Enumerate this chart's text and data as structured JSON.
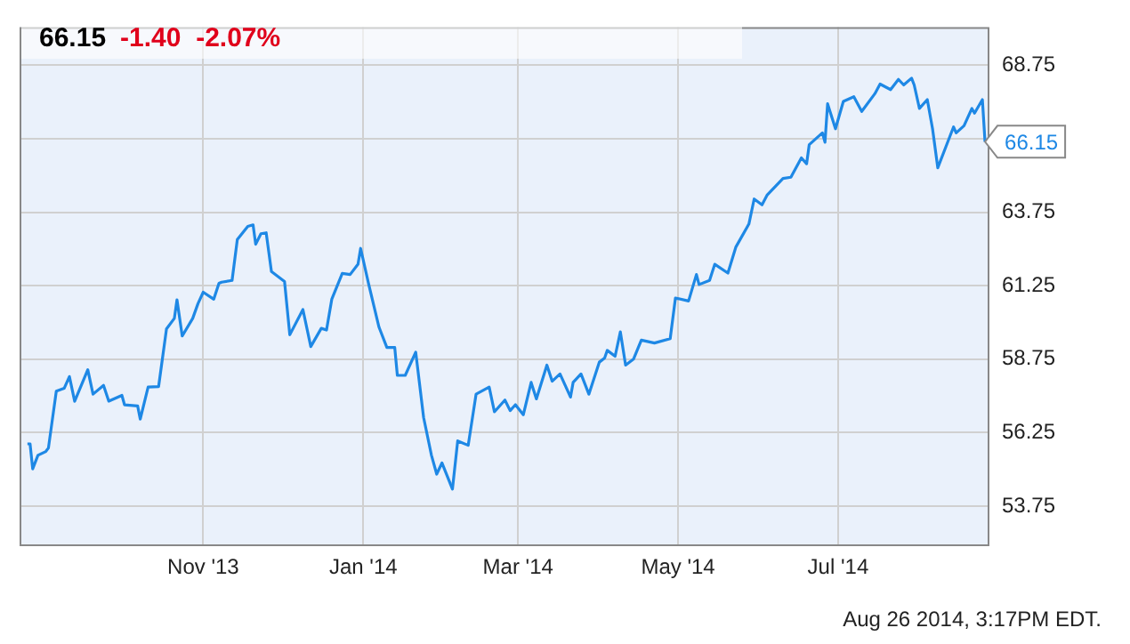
{
  "chart_data": {
    "type": "line",
    "title": "66.15",
    "subtitle": "-1.40  -2.07%",
    "x": [
      "2013-08-26",
      "2013-08-27",
      "2013-08-28",
      "2013-08-30",
      "2013-09-02",
      "2013-09-03",
      "2013-09-06",
      "2013-09-09",
      "2013-09-11",
      "2013-09-13",
      "2013-09-18",
      "2013-09-20",
      "2013-09-24",
      "2013-09-26",
      "2013-10-01",
      "2013-10-02",
      "2013-10-07",
      "2013-10-08",
      "2013-10-11",
      "2013-10-15",
      "2013-10-18",
      "2013-10-21",
      "2013-10-22",
      "2013-10-24",
      "2013-10-28",
      "2013-10-30",
      "2013-11-01",
      "2013-11-05",
      "2013-11-07",
      "2013-11-08",
      "2013-11-12",
      "2013-11-14",
      "2013-11-18",
      "2013-11-20",
      "2013-11-21",
      "2013-11-23",
      "2013-11-25",
      "2013-11-27",
      "2013-12-02",
      "2013-12-04",
      "2013-12-09",
      "2013-12-12",
      "2013-12-16",
      "2013-12-18",
      "2013-12-20",
      "2013-12-24",
      "2013-12-27",
      "2013-12-30",
      "2013-12-31",
      "2014-01-03",
      "2014-01-07",
      "2014-01-10",
      "2014-01-13",
      "2014-01-14",
      "2014-01-17",
      "2014-01-21",
      "2014-01-24",
      "2014-01-27",
      "2014-01-29",
      "2014-01-31",
      "2014-02-04",
      "2014-02-06",
      "2014-02-10",
      "2014-02-13",
      "2014-02-18",
      "2014-02-20",
      "2014-02-24",
      "2014-02-26",
      "2014-02-28",
      "2014-03-03",
      "2014-03-06",
      "2014-03-08",
      "2014-03-12",
      "2014-03-14",
      "2014-03-17",
      "2014-03-21",
      "2014-03-22",
      "2014-03-25",
      "2014-03-28",
      "2014-04-01",
      "2014-04-03",
      "2014-04-04",
      "2014-04-07",
      "2014-04-09",
      "2014-04-11",
      "2014-04-14",
      "2014-04-17",
      "2014-04-22",
      "2014-04-28",
      "2014-04-30",
      "2014-05-05",
      "2014-05-08",
      "2014-05-09",
      "2014-05-13",
      "2014-05-15",
      "2014-05-20",
      "2014-05-23",
      "2014-05-28",
      "2014-05-30",
      "2014-06-02",
      "2014-06-04",
      "2014-06-10",
      "2014-06-13",
      "2014-06-17",
      "2014-06-19",
      "2014-06-20",
      "2014-06-25",
      "2014-06-26",
      "2014-06-27",
      "2014-06-30",
      "2014-07-03",
      "2014-07-07",
      "2014-07-10",
      "2014-07-15",
      "2014-07-17",
      "2014-07-21",
      "2014-07-24",
      "2014-07-26",
      "2014-07-29",
      "2014-07-30",
      "2014-08-01",
      "2014-08-04",
      "2014-08-06",
      "2014-08-08",
      "2014-08-12",
      "2014-08-14",
      "2014-08-15",
      "2014-08-18",
      "2014-08-21",
      "2014-08-22",
      "2014-08-25",
      "2014-08-26"
    ],
    "series": [
      {
        "color": "#1e88e5",
        "values": [
          55.87,
          55.87,
          55.02,
          55.48,
          55.61,
          55.73,
          57.66,
          57.76,
          58.16,
          57.32,
          58.39,
          57.56,
          57.86,
          57.32,
          57.52,
          57.2,
          57.16,
          56.71,
          57.8,
          57.82,
          59.78,
          60.14,
          60.77,
          59.54,
          60.14,
          60.64,
          61.03,
          60.79,
          61.33,
          61.37,
          61.43,
          62.82,
          63.27,
          63.32,
          62.66,
          63.02,
          63.05,
          61.73,
          61.39,
          59.58,
          60.44,
          59.18,
          59.8,
          59.74,
          60.79,
          61.67,
          61.63,
          61.98,
          62.52,
          61.33,
          59.84,
          59.15,
          59.15,
          58.2,
          58.2,
          58.99,
          56.77,
          55.48,
          54.84,
          55.22,
          54.33,
          55.97,
          55.82,
          57.56,
          57.8,
          56.96,
          57.36,
          57.0,
          57.2,
          56.86,
          57.96,
          57.4,
          58.55,
          58.0,
          58.25,
          57.46,
          57.96,
          58.25,
          57.56,
          58.65,
          58.79,
          59.05,
          58.85,
          59.68,
          58.55,
          58.75,
          59.4,
          59.3,
          59.45,
          60.83,
          60.73,
          61.63,
          61.29,
          61.43,
          61.98,
          61.68,
          62.56,
          63.35,
          64.2,
          64.0,
          64.34,
          64.9,
          64.94,
          65.6,
          65.4,
          66.05,
          66.45,
          66.13,
          67.44,
          66.59,
          67.52,
          67.68,
          67.18,
          67.78,
          68.11,
          67.92,
          68.27,
          68.08,
          68.31,
          68.08,
          67.28,
          67.58,
          66.59,
          65.26,
          66.19,
          66.65,
          66.45,
          66.69,
          67.28,
          67.12,
          67.58,
          66.15
        ]
      }
    ],
    "xlim": [
      "2013-08-23",
      "2014-08-27"
    ],
    "xticks": [
      {
        "value": "2013-11-01",
        "label": "Nov '13"
      },
      {
        "value": "2014-01-01",
        "label": "Jan '14"
      },
      {
        "value": "2014-03-01",
        "label": "Mar '14"
      },
      {
        "value": "2014-05-01",
        "label": "May '14"
      },
      {
        "value": "2014-07-01",
        "label": "Jul '14"
      }
    ],
    "ylim": [
      52.45,
      70.05
    ],
    "yticks": [
      53.75,
      56.25,
      58.75,
      61.25,
      63.75,
      {
        "value": 66.25,
        "label": null
      },
      68.75
    ],
    "grid": true,
    "legend": false,
    "marker": "none",
    "annotations": [
      {
        "text": "66.15",
        "x": "2014-08-26",
        "y": 66.15
      },
      "Aug 26 2014, 3:17PM EDT."
    ]
  }
}
